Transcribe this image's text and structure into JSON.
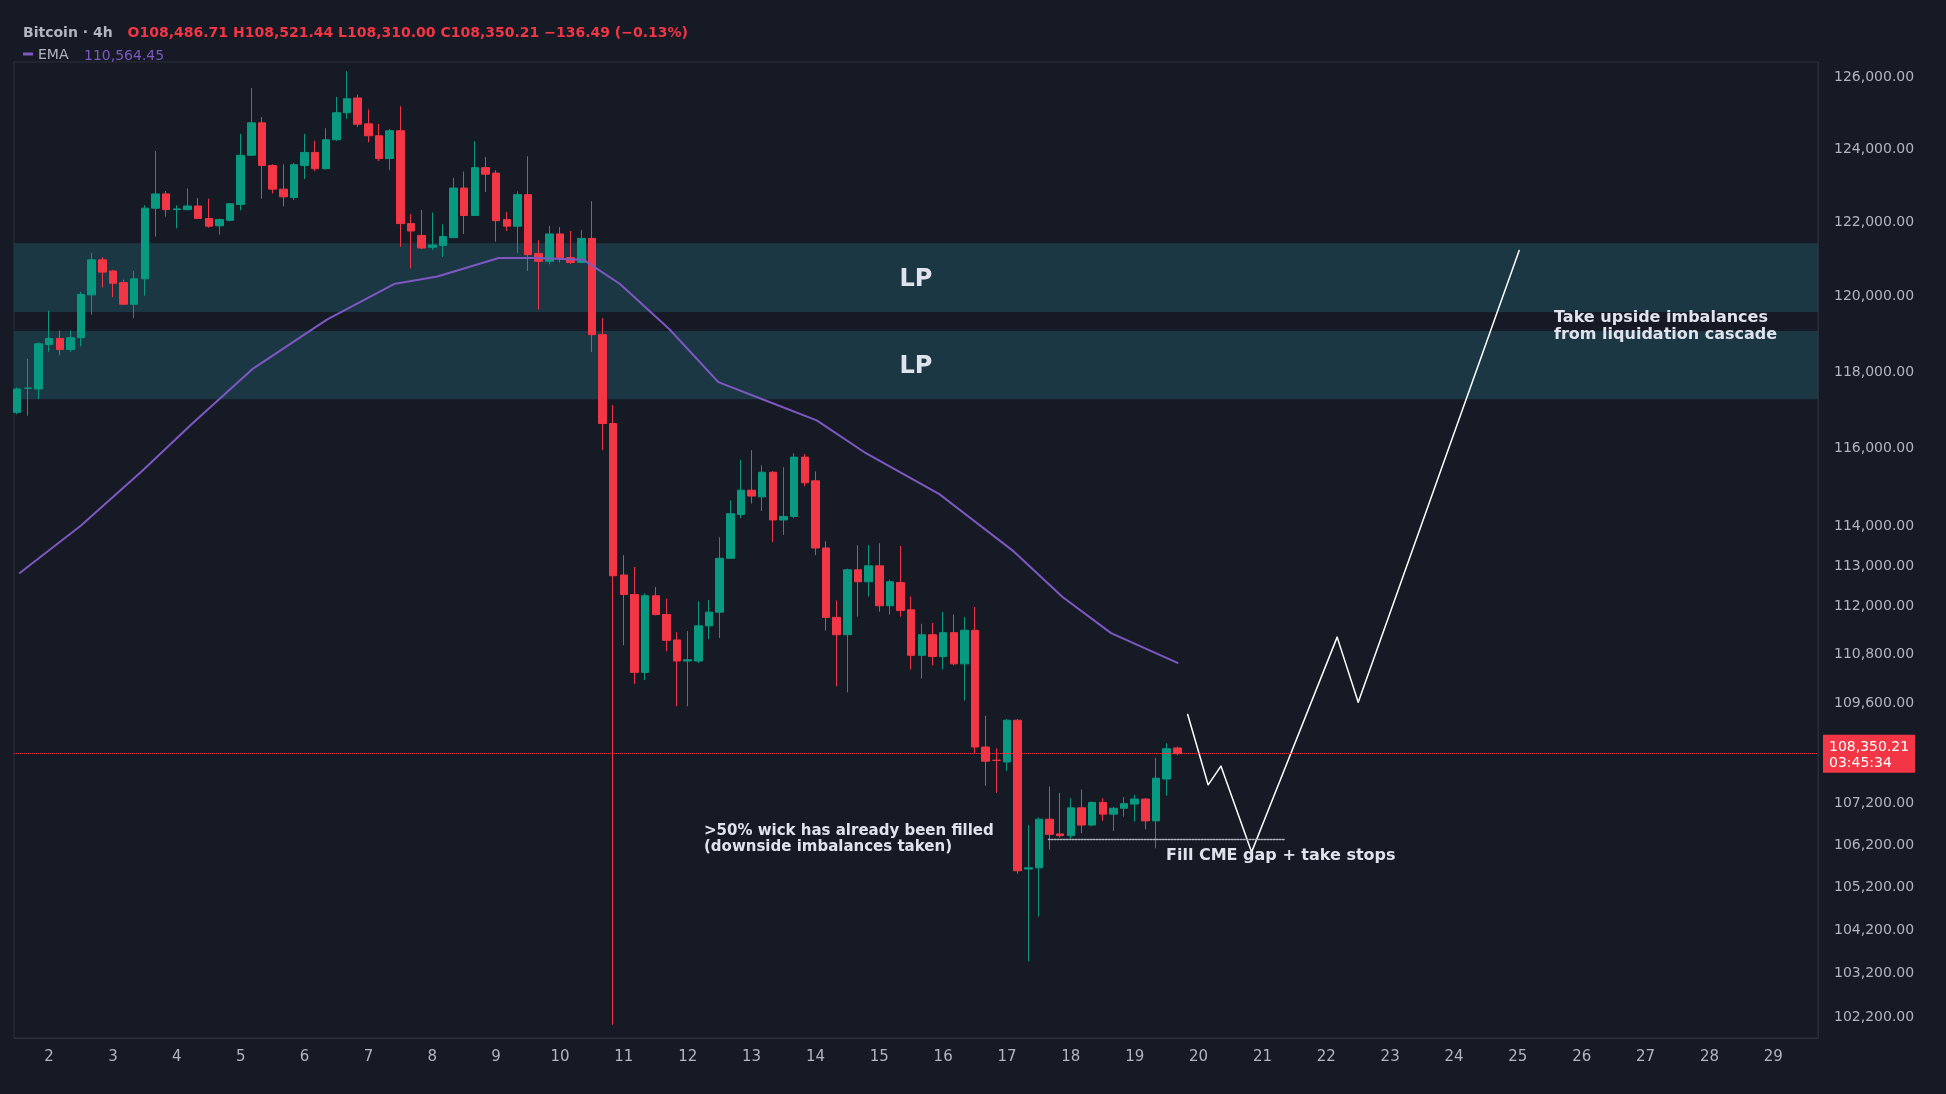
{
  "chart_data": {
    "type": "candlestick",
    "title": "Bitcoin · 4h",
    "subtitle": "O108,486.71 H108,521.44 L108,310.00 C108,350.21 −136.49 (−0.13%)",
    "x": [
      1.5,
      1.667,
      1.833,
      2,
      2.167,
      2.333,
      2.5,
      2.667,
      2.833,
      3,
      3.167,
      3.333,
      3.5,
      3.667,
      3.833,
      4,
      4.167,
      4.333,
      4.5,
      4.667,
      4.833,
      5,
      5.167,
      5.333,
      5.5,
      5.667,
      5.833,
      6,
      6.167,
      6.333,
      6.5,
      6.667,
      6.833,
      7,
      7.167,
      7.333,
      7.5,
      7.667,
      7.833,
      8,
      8.167,
      8.333,
      8.5,
      8.667,
      8.833,
      9,
      9.167,
      9.333,
      9.5,
      9.667,
      9.833,
      10,
      10.167,
      10.333,
      10.5,
      10.667,
      10.833,
      11,
      11.167,
      11.333,
      11.5,
      11.667,
      11.833,
      12,
      12.167,
      12.333,
      12.5,
      12.667,
      12.833,
      13,
      13.167,
      13.333,
      13.5,
      13.667,
      13.833,
      14,
      14.167,
      14.333,
      14.5,
      14.667,
      14.833,
      15,
      15.167,
      15.333,
      15.5,
      15.667,
      15.833,
      16,
      16.167,
      16.333,
      16.5,
      16.667,
      16.833,
      17,
      17.167,
      17.333,
      17.5,
      17.667,
      17.833,
      18,
      18.167,
      18.333,
      18.5,
      18.667,
      18.833,
      19,
      19.167,
      19.333,
      19.5,
      19.667
    ],
    "ohlc": [
      [
        116910,
        117560,
        116860,
        117520
      ],
      [
        117540,
        118310,
        116820,
        117540
      ],
      [
        117520,
        118750,
        117260,
        118710
      ],
      [
        118690,
        119590,
        118500,
        118850
      ],
      [
        118850,
        119060,
        118410,
        118560
      ],
      [
        118560,
        119060,
        118500,
        118870
      ],
      [
        118870,
        120090,
        118640,
        120020
      ],
      [
        120010,
        121140,
        119480,
        120950
      ],
      [
        120950,
        121020,
        120210,
        120620
      ],
      [
        120650,
        120680,
        119950,
        120320
      ],
      [
        120340,
        120420,
        119740,
        119760
      ],
      [
        119760,
        120650,
        119390,
        120440
      ],
      [
        120440,
        122430,
        119990,
        122350
      ],
      [
        122350,
        123920,
        121580,
        122740
      ],
      [
        122740,
        122820,
        122120,
        122310
      ],
      [
        122310,
        122430,
        121800,
        122330
      ],
      [
        122310,
        122890,
        122290,
        122410
      ],
      [
        122410,
        122630,
        122050,
        122070
      ],
      [
        122070,
        122610,
        121820,
        121860
      ],
      [
        121870,
        122070,
        121630,
        122040
      ],
      [
        122020,
        122490,
        121990,
        122470
      ],
      [
        122450,
        124390,
        122290,
        123800
      ],
      [
        123800,
        125670,
        123780,
        124700
      ],
      [
        124700,
        124860,
        122610,
        123520
      ],
      [
        123520,
        123550,
        122750,
        122870
      ],
      [
        122870,
        123550,
        122400,
        122660
      ],
      [
        122640,
        123590,
        122570,
        123540
      ],
      [
        123520,
        124390,
        123150,
        123880
      ],
      [
        123880,
        124200,
        123360,
        123430
      ],
      [
        123430,
        124550,
        123410,
        124230
      ],
      [
        124230,
        125420,
        124200,
        124980
      ],
      [
        124980,
        126140,
        124810,
        125370
      ],
      [
        125390,
        125490,
        124580,
        124660
      ],
      [
        124670,
        125070,
        124160,
        124340
      ],
      [
        124340,
        124670,
        123640,
        123710
      ],
      [
        123710,
        124530,
        123390,
        124480
      ],
      [
        124480,
        125160,
        121300,
        121930
      ],
      [
        121930,
        122190,
        120720,
        121730
      ],
      [
        121610,
        122300,
        121240,
        121270
      ],
      [
        121290,
        122230,
        121220,
        121350
      ],
      [
        121340,
        121910,
        121030,
        121580
      ],
      [
        121550,
        123180,
        121550,
        122900
      ],
      [
        122900,
        123350,
        121650,
        122150
      ],
      [
        122150,
        124190,
        122150,
        123460
      ],
      [
        123460,
        123750,
        122790,
        123280
      ],
      [
        123310,
        123390,
        121440,
        122010
      ],
      [
        122040,
        122250,
        121730,
        121860
      ],
      [
        121860,
        122810,
        121140,
        122720
      ],
      [
        122720,
        123770,
        120650,
        121090
      ],
      [
        121120,
        121480,
        119620,
        120910
      ],
      [
        120910,
        121870,
        120830,
        121650
      ],
      [
        121650,
        121840,
        120880,
        121010
      ],
      [
        121010,
        121730,
        120840,
        120880
      ],
      [
        120880,
        121760,
        120860,
        121530
      ],
      [
        121530,
        122540,
        118490,
        118950
      ],
      [
        118950,
        119390,
        115930,
        116620
      ],
      [
        116620,
        117100,
        102000,
        112730
      ],
      [
        112750,
        113250,
        111000,
        112260
      ],
      [
        112260,
        112950,
        110050,
        110330
      ],
      [
        110330,
        112290,
        110140,
        112230
      ],
      [
        112230,
        112450,
        111740,
        111760
      ],
      [
        111760,
        112160,
        110850,
        111120
      ],
      [
        111130,
        111320,
        109500,
        110610
      ],
      [
        110610,
        111350,
        109500,
        110640
      ],
      [
        110610,
        112090,
        110560,
        111480
      ],
      [
        111480,
        112120,
        111150,
        111820
      ],
      [
        111820,
        113700,
        111180,
        113170
      ],
      [
        113170,
        114640,
        113170,
        114300
      ],
      [
        114280,
        115680,
        114190,
        114900
      ],
      [
        114900,
        115930,
        114560,
        114750
      ],
      [
        114730,
        115540,
        114370,
        115360
      ],
      [
        115360,
        115390,
        113580,
        114140
      ],
      [
        114140,
        115490,
        113760,
        114230
      ],
      [
        114230,
        115850,
        114190,
        115750
      ],
      [
        115750,
        115830,
        115000,
        115090
      ],
      [
        115140,
        115380,
        113250,
        113430
      ],
      [
        113430,
        113600,
        111360,
        111690
      ],
      [
        111690,
        112110,
        109990,
        111260
      ],
      [
        111260,
        112910,
        109840,
        112880
      ],
      [
        112880,
        113500,
        111710,
        112580
      ],
      [
        112580,
        113500,
        112210,
        112980
      ],
      [
        112980,
        113550,
        111830,
        111980
      ],
      [
        111980,
        112630,
        111760,
        112580
      ],
      [
        112560,
        113480,
        111710,
        111860
      ],
      [
        111880,
        112210,
        110400,
        110750
      ],
      [
        110750,
        111530,
        110180,
        111260
      ],
      [
        111260,
        111550,
        110500,
        110720
      ],
      [
        110720,
        111830,
        110400,
        111310
      ],
      [
        111310,
        111760,
        110500,
        110540
      ],
      [
        110540,
        111700,
        109640,
        111370
      ],
      [
        111370,
        111950,
        108360,
        108510
      ],
      [
        108510,
        109270,
        107580,
        108170
      ],
      [
        108190,
        108480,
        107410,
        108190
      ],
      [
        108150,
        109190,
        107930,
        109160
      ],
      [
        109160,
        109190,
        105490,
        105560
      ],
      [
        105600,
        106640,
        103450,
        105630
      ],
      [
        105630,
        106820,
        104490,
        106780
      ],
      [
        106780,
        107560,
        106060,
        106420
      ],
      [
        106430,
        107410,
        106340,
        106390
      ],
      [
        106390,
        107280,
        106320,
        107050
      ],
      [
        107050,
        107490,
        106450,
        106640
      ],
      [
        106640,
        107200,
        106610,
        107180
      ],
      [
        107180,
        107280,
        106740,
        106900
      ],
      [
        106900,
        107070,
        106500,
        107040
      ],
      [
        107040,
        107310,
        106840,
        107150
      ],
      [
        107140,
        107360,
        106720,
        107260
      ],
      [
        107260,
        107280,
        106540,
        106740
      ],
      [
        106740,
        108250,
        106090,
        107760
      ],
      [
        107740,
        108600,
        107340,
        108470
      ],
      [
        108486.71,
        108521.44,
        108310,
        108350.21
      ]
    ],
    "colors": [
      "#089981",
      "#089981",
      "#089981",
      "#089981",
      "#f23645",
      "#089981",
      "#089981",
      "#089981",
      "#f23645",
      "#f23645",
      "#f23645",
      "#089981",
      "#089981",
      "#089981",
      "#f23645",
      "#089981",
      "#089981",
      "#f23645",
      "#f23645",
      "#089981",
      "#089981",
      "#089981",
      "#089981",
      "#f23645",
      "#f23645",
      "#f23645",
      "#089981",
      "#089981",
      "#f23645",
      "#089981",
      "#089981",
      "#089981",
      "#f23645",
      "#f23645",
      "#f23645",
      "#089981",
      "#f23645",
      "#f23645",
      "#f23645",
      "#089981",
      "#089981",
      "#089981",
      "#f23645",
      "#089981",
      "#f23645",
      "#f23645",
      "#f23645",
      "#089981",
      "#f23645",
      "#f23645",
      "#089981",
      "#f23645",
      "#f23645",
      "#089981",
      "#f23645",
      "#f23645",
      "#f23645",
      "#f23645",
      "#f23645",
      "#089981",
      "#f23645",
      "#f23645",
      "#f23645",
      "#089981",
      "#089981",
      "#089981",
      "#089981",
      "#089981",
      "#089981",
      "#f23645",
      "#089981",
      "#f23645",
      "#089981",
      "#089981",
      "#f23645",
      "#f23645",
      "#f23645",
      "#f23645",
      "#089981",
      "#f23645",
      "#089981",
      "#f23645",
      "#089981",
      "#f23645",
      "#f23645",
      "#089981",
      "#f23645",
      "#089981",
      "#f23645",
      "#089981",
      "#f23645",
      "#f23645",
      "#f23645",
      "#089981",
      "#f23645",
      "#089981",
      "#089981",
      "#f23645",
      "#f23645",
      "#089981",
      "#f23645",
      "#089981",
      "#f23645",
      "#089981",
      "#089981",
      "#089981",
      "#f23645",
      "#089981",
      "#089981",
      "#f23645"
    ],
    "series": [
      {
        "type": "line",
        "name": "EMA",
        "color": "#7e57c2",
        "x": [
          1.54,
          2.5,
          3.46,
          4.23,
          5.19,
          6.35,
          7.4,
          8.08,
          9.04,
          9.6,
          10.37,
          10.94,
          11.71,
          12.48,
          13.25,
          14.02,
          14.79,
          15.94,
          17.1,
          17.87,
          18.63,
          19.67
        ],
        "values": [
          112800,
          114000,
          115400,
          116600,
          118050,
          119350,
          120300,
          120500,
          121000,
          121000,
          120950,
          120300,
          119100,
          117700,
          117200,
          116700,
          115850,
          114800,
          113350,
          112200,
          111300,
          110564.45
        ]
      },
      {
        "type": "line",
        "color": "#ffffff",
        "x": [
          19.83,
          20.15,
          20.35,
          20.83,
          22.17,
          22.5,
          25.02
        ],
        "values": [
          109300,
          107600,
          108050,
          106000,
          111200,
          109600,
          121200
        ]
      },
      {
        "type": "line",
        "color": "#b2b5be",
        "line_style": "dotted",
        "x": [
          17.65,
          21.35
        ],
        "values": [
          106300,
          106300
        ]
      }
    ],
    "xlim": [
      1.45,
      29.7
    ],
    "xticks": [
      2,
      3,
      4,
      5,
      6,
      7,
      8,
      9,
      10,
      11,
      12,
      13,
      14,
      15,
      16,
      17,
      18,
      19,
      20,
      21,
      22,
      23,
      24,
      25,
      26,
      27,
      28,
      29
    ],
    "ylim": [
      101700,
      126400
    ],
    "log": true,
    "yticks": [
      {
        "value": 102200,
        "label": "102,200.00"
      },
      {
        "value": 103200,
        "label": "103,200.00"
      },
      {
        "value": 104200,
        "label": "104,200.00"
      },
      {
        "value": 105200,
        "label": "105,200.00"
      },
      {
        "value": 106200,
        "label": "106,200.00"
      },
      {
        "value": 107200,
        "label": "107,200.00"
      },
      {
        "value": 109600,
        "label": "109,600.00"
      },
      {
        "value": 110800,
        "label": "110,800.00"
      },
      {
        "value": 112000,
        "label": "112,000.00"
      },
      {
        "value": 113000,
        "label": "113,000.00"
      },
      {
        "value": 114000,
        "label": "114,000.00"
      },
      {
        "value": 116000,
        "label": "116,000.00"
      },
      {
        "value": 118000,
        "label": "118,000.00"
      },
      {
        "value": 120000,
        "label": "120,000.00"
      },
      {
        "value": 122000,
        "label": "122,000.00"
      },
      {
        "value": 124000,
        "label": "124,000.00"
      },
      {
        "value": 126000,
        "label": "126,000.00"
      }
    ],
    "ref_lines": [
      {
        "axis": "y",
        "value": 108350.21,
        "label": "108,350.21\n03:45:34",
        "color": "#f23645",
        "line_style": "dotted"
      }
    ],
    "bands": [
      {
        "axis": "y",
        "from": 119550,
        "to": 121400,
        "label": "LP",
        "color": "#1c3d4a"
      },
      {
        "axis": "y",
        "from": 117250,
        "to": 119050,
        "label": "LP",
        "color": "#1c3d4a"
      }
    ],
    "annotations": [
      "Take upside imbalances\nfrom liquidation cascade",
      ">50% wick has already been filled\n(downside imbalances taken)",
      "Fill CME gap + take stops",
      "110,564.45"
    ],
    "legend": "top left",
    "grid": false
  }
}
